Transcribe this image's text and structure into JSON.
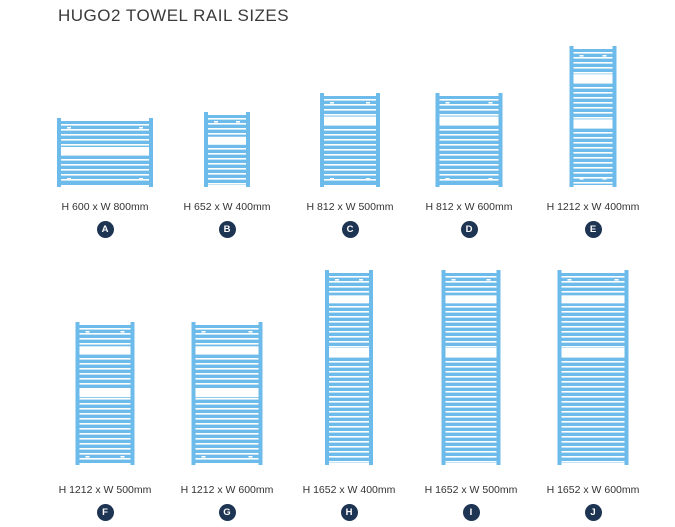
{
  "title": "HUGO2 TOWEL RAIL SIZES",
  "rail_color": "#6dbbea",
  "badge_color": "#1d3453",
  "rails": [
    {
      "letter": "A",
      "label": "H 600 x W 800mm",
      "height_mm": 600,
      "width_mm": 800
    },
    {
      "letter": "B",
      "label": "H 652 x W 400mm",
      "height_mm": 652,
      "width_mm": 400
    },
    {
      "letter": "C",
      "label": "H 812 x W 500mm",
      "height_mm": 812,
      "width_mm": 500
    },
    {
      "letter": "D",
      "label": "H 812 x W 600mm",
      "height_mm": 812,
      "width_mm": 600
    },
    {
      "letter": "E",
      "label": "H 1212 x W 400mm",
      "height_mm": 1212,
      "width_mm": 400
    },
    {
      "letter": "F",
      "label": "H 1212 x W 500mm",
      "height_mm": 1212,
      "width_mm": 500
    },
    {
      "letter": "G",
      "label": "H 1212 x W 600mm",
      "height_mm": 1212,
      "width_mm": 600
    },
    {
      "letter": "H",
      "label": "H 1652 x W 400mm",
      "height_mm": 1652,
      "width_mm": 400
    },
    {
      "letter": "I",
      "label": "H 1652 x W 500mm",
      "height_mm": 1652,
      "width_mm": 500
    },
    {
      "letter": "J",
      "label": "H 1652 x W 600mm",
      "height_mm": 1652,
      "width_mm": 600
    }
  ]
}
